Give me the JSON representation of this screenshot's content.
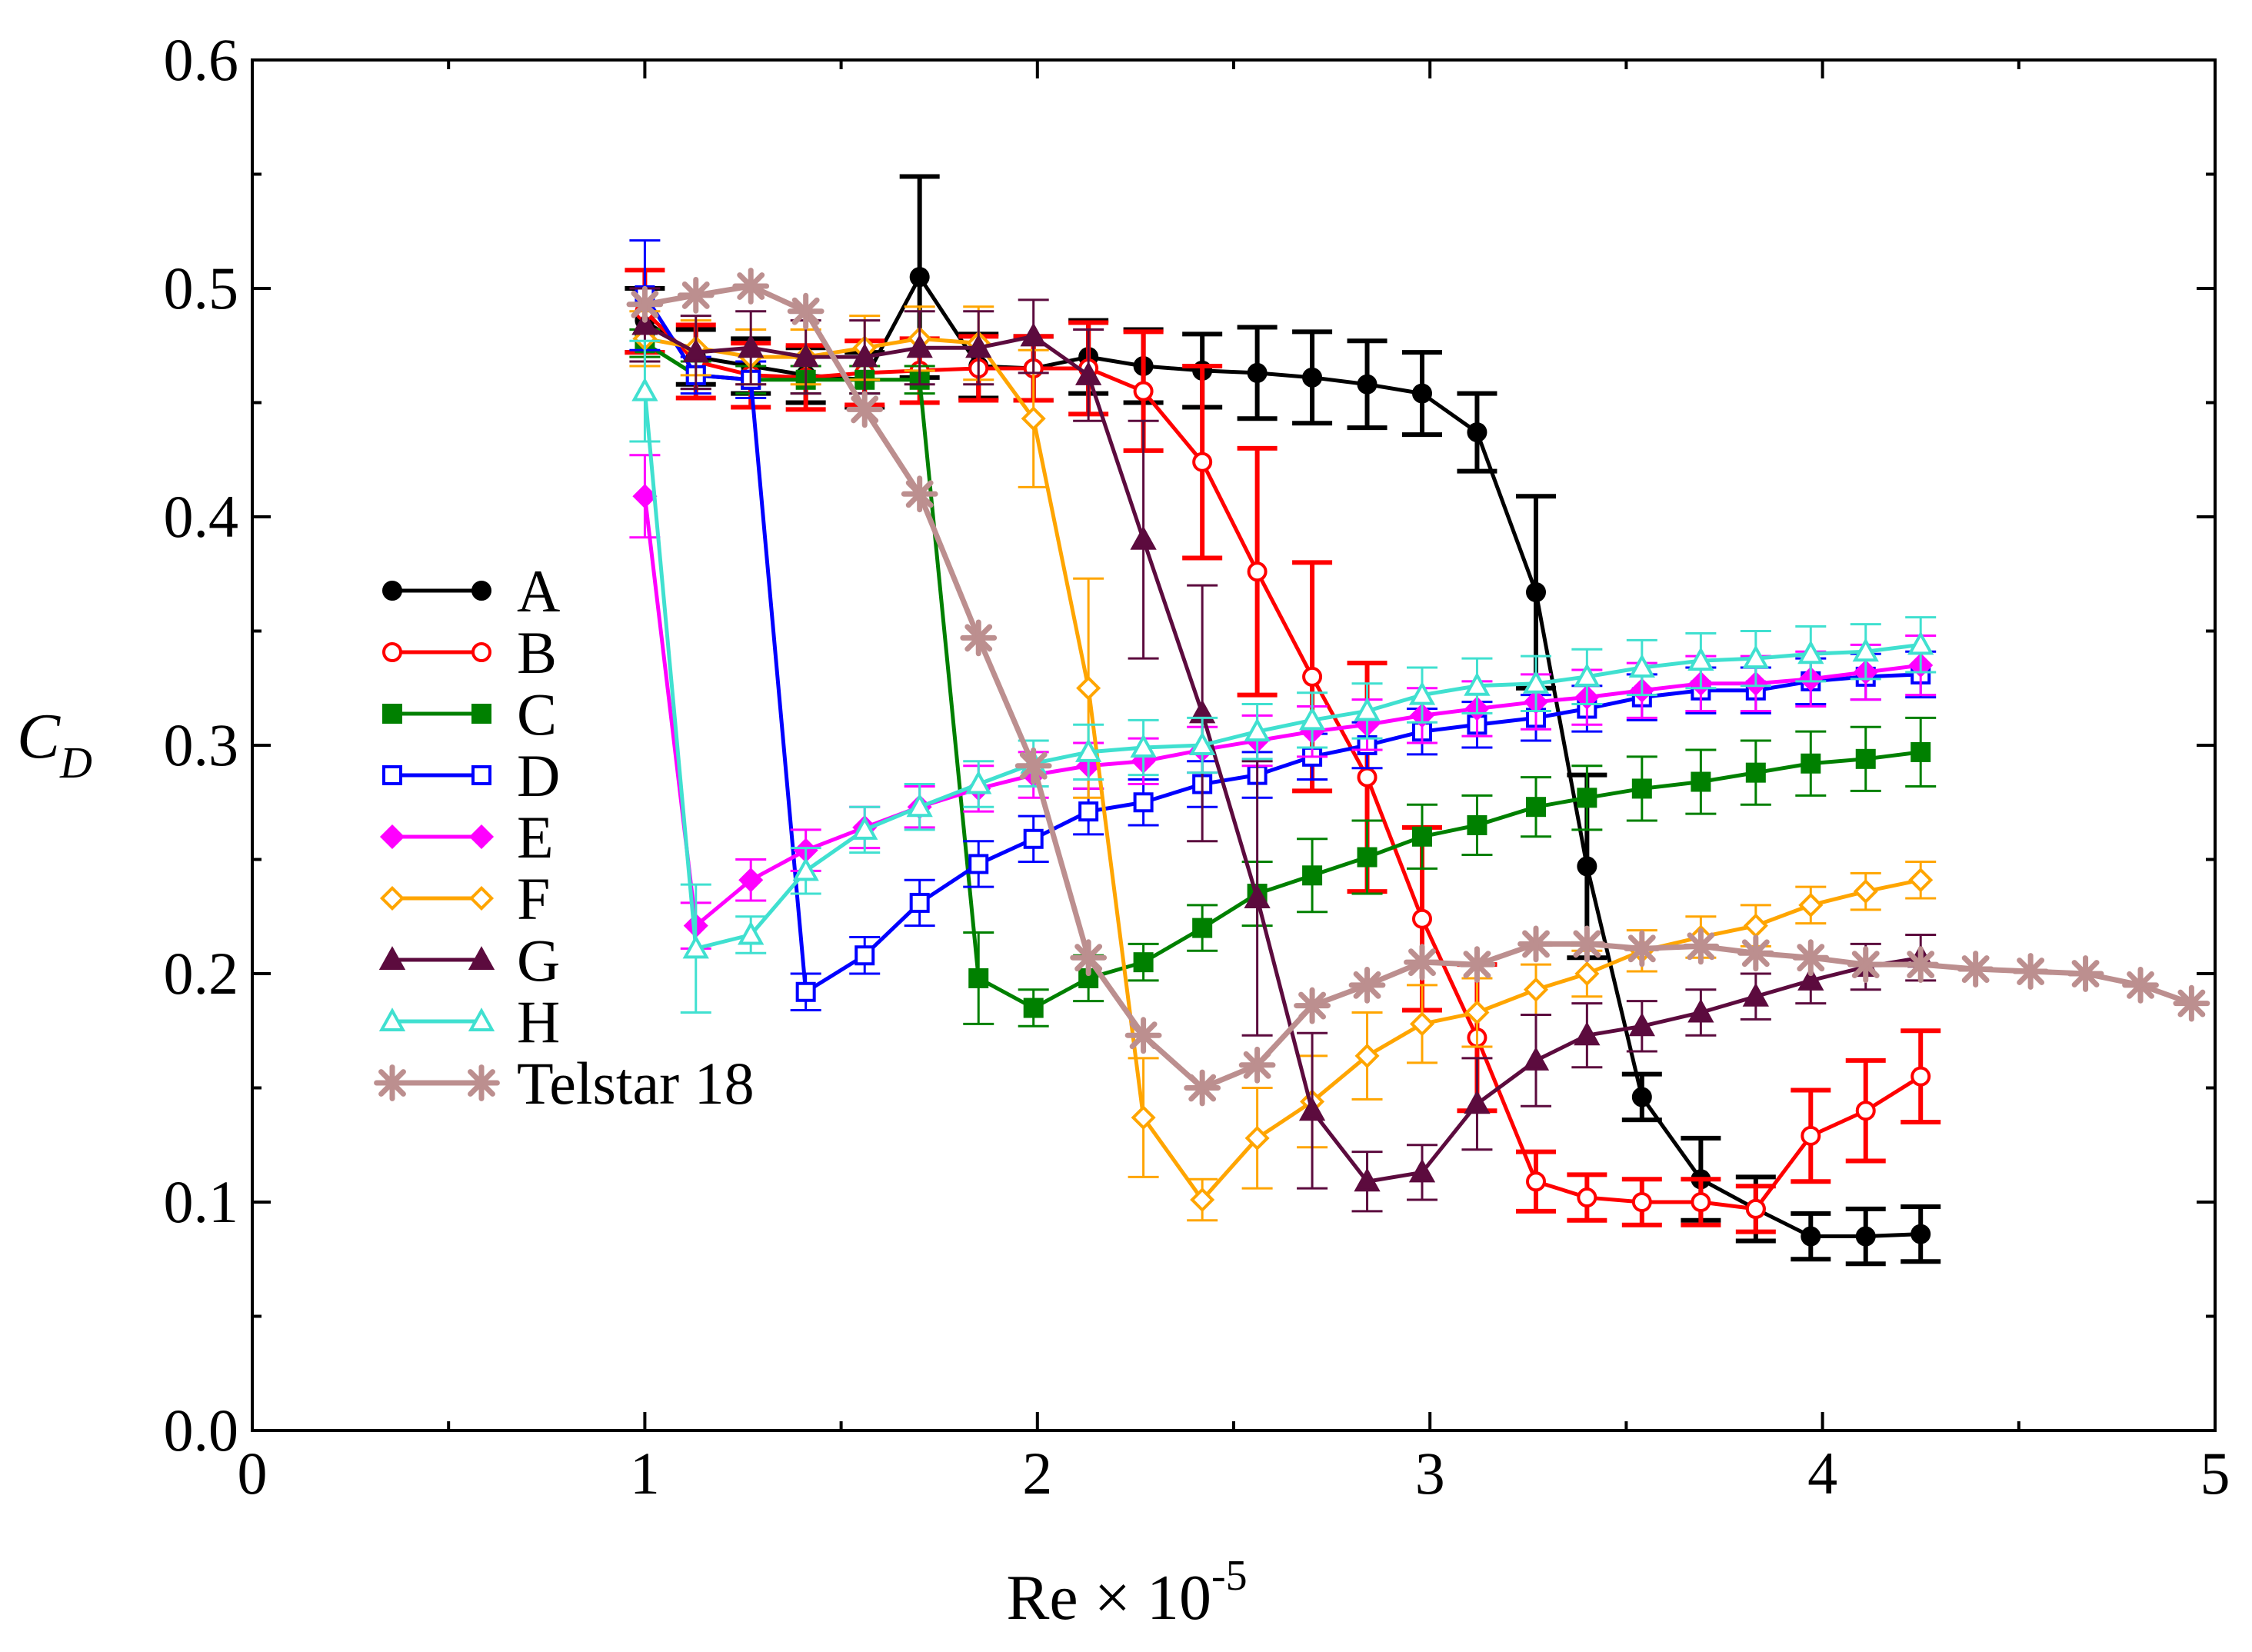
{
  "chart_data": {
    "type": "line",
    "title": "",
    "xlabel": "Re × 10",
    "xlabel_exponent": "-5",
    "ylabel_main": "C",
    "ylabel_sub": "D",
    "xlim": [
      0,
      5
    ],
    "ylim": [
      0,
      0.6
    ],
    "x_ticks": [
      0,
      1,
      2,
      3,
      4,
      5
    ],
    "x_tick_labels": [
      "0",
      "1",
      "2",
      "3",
      "4",
      "5"
    ],
    "y_ticks": [
      0.0,
      0.1,
      0.2,
      0.3,
      0.4,
      0.5,
      0.6
    ],
    "y_tick_labels": [
      "0.0",
      "0.1",
      "0.2",
      "0.3",
      "0.4",
      "0.5",
      "0.6"
    ],
    "grid": false,
    "legend_position": "left",
    "series": [
      {
        "name": "A",
        "color": "#000000",
        "marker": "circle",
        "filled": true,
        "errcap_bold": true,
        "x": [
          1.0,
          1.13,
          1.27,
          1.41,
          1.56,
          1.7,
          1.85,
          1.99,
          2.13,
          2.27,
          2.42,
          2.56,
          2.7,
          2.84,
          2.98,
          3.12,
          3.27,
          3.4,
          3.54,
          3.69,
          3.83,
          3.97,
          4.11,
          4.25
        ],
        "y": [
          0.486,
          0.47,
          0.466,
          0.462,
          0.46,
          0.505,
          0.466,
          0.465,
          0.47,
          0.466,
          0.464,
          0.463,
          0.461,
          0.458,
          0.454,
          0.437,
          0.367,
          0.247,
          0.146,
          0.11,
          0.097,
          0.085,
          0.085,
          0.086
        ],
        "err": [
          0.014,
          0.012,
          0.012,
          0.012,
          0.012,
          0.044,
          0.014,
          0.014,
          0.016,
          0.016,
          0.016,
          0.02,
          0.02,
          0.019,
          0.018,
          0.017,
          0.042,
          0.04,
          0.01,
          0.018,
          0.014,
          0.01,
          0.012,
          0.012
        ]
      },
      {
        "name": "B",
        "color": "#ff0000",
        "marker": "circle",
        "filled": false,
        "errcap_bold": true,
        "x": [
          1.0,
          1.13,
          1.27,
          1.41,
          1.56,
          1.7,
          1.85,
          1.99,
          2.13,
          2.27,
          2.42,
          2.56,
          2.7,
          2.84,
          2.98,
          3.12,
          3.27,
          3.4,
          3.54,
          3.69,
          3.83,
          3.97,
          4.11,
          4.25
        ],
        "y": [
          0.49,
          0.468,
          0.462,
          0.461,
          0.463,
          0.464,
          0.465,
          0.465,
          0.465,
          0.455,
          0.424,
          0.376,
          0.33,
          0.286,
          0.224,
          0.172,
          0.109,
          0.102,
          0.1,
          0.1,
          0.097,
          0.129,
          0.14,
          0.155
        ],
        "err": [
          0.018,
          0.016,
          0.014,
          0.014,
          0.014,
          0.014,
          0.014,
          0.014,
          0.02,
          0.026,
          0.042,
          0.054,
          0.05,
          0.05,
          0.04,
          0.032,
          0.013,
          0.01,
          0.01,
          0.01,
          0.01,
          0.02,
          0.022,
          0.02
        ]
      },
      {
        "name": "C",
        "color": "#008000",
        "marker": "square",
        "filled": true,
        "errcap_bold": false,
        "x": [
          1.0,
          1.13,
          1.27,
          1.41,
          1.56,
          1.7,
          1.85,
          1.99,
          2.13,
          2.27,
          2.42,
          2.56,
          2.7,
          2.84,
          2.98,
          3.12,
          3.27,
          3.4,
          3.54,
          3.69,
          3.83,
          3.97,
          4.11,
          4.25
        ],
        "y": [
          0.476,
          0.462,
          0.46,
          0.46,
          0.46,
          0.46,
          0.198,
          0.185,
          0.198,
          0.205,
          0.22,
          0.235,
          0.243,
          0.251,
          0.26,
          0.265,
          0.273,
          0.277,
          0.281,
          0.284,
          0.288,
          0.292,
          0.294,
          0.297
        ],
        "err": [
          0.006,
          0.006,
          0.006,
          0.006,
          0.006,
          0.006,
          0.02,
          0.008,
          0.01,
          0.008,
          0.01,
          0.014,
          0.016,
          0.016,
          0.014,
          0.013,
          0.013,
          0.014,
          0.014,
          0.014,
          0.014,
          0.014,
          0.014,
          0.015
        ]
      },
      {
        "name": "D",
        "color": "#0000ff",
        "marker": "square",
        "filled": false,
        "errcap_bold": false,
        "x": [
          1.0,
          1.13,
          1.27,
          1.41,
          1.56,
          1.7,
          1.85,
          1.99,
          2.13,
          2.27,
          2.42,
          2.56,
          2.7,
          2.84,
          2.98,
          3.12,
          3.27,
          3.4,
          3.54,
          3.69,
          3.83,
          3.97,
          4.11,
          4.25
        ],
        "y": [
          0.497,
          0.462,
          0.46,
          0.192,
          0.208,
          0.231,
          0.248,
          0.259,
          0.271,
          0.275,
          0.283,
          0.287,
          0.295,
          0.3,
          0.306,
          0.309,
          0.312,
          0.316,
          0.321,
          0.324,
          0.324,
          0.328,
          0.33,
          0.331
        ],
        "err": [
          0.024,
          0.008,
          0.008,
          0.008,
          0.008,
          0.01,
          0.01,
          0.01,
          0.01,
          0.01,
          0.01,
          0.01,
          0.01,
          0.01,
          0.01,
          0.01,
          0.01,
          0.01,
          0.01,
          0.01,
          0.01,
          0.01,
          0.01,
          0.01
        ]
      },
      {
        "name": "E",
        "color": "#ff00ff",
        "marker": "diamond",
        "filled": true,
        "errcap_bold": false,
        "x": [
          1.0,
          1.13,
          1.27,
          1.41,
          1.56,
          1.7,
          1.85,
          1.99,
          2.13,
          2.27,
          2.42,
          2.56,
          2.7,
          2.84,
          2.98,
          3.12,
          3.27,
          3.4,
          3.54,
          3.69,
          3.83,
          3.97,
          4.11,
          4.25
        ],
        "y": [
          0.409,
          0.221,
          0.241,
          0.254,
          0.264,
          0.273,
          0.281,
          0.287,
          0.291,
          0.293,
          0.298,
          0.302,
          0.306,
          0.309,
          0.313,
          0.316,
          0.319,
          0.321,
          0.324,
          0.327,
          0.327,
          0.329,
          0.332,
          0.335
        ],
        "err": [
          0.018,
          0.01,
          0.009,
          0.009,
          0.009,
          0.009,
          0.01,
          0.01,
          0.01,
          0.01,
          0.01,
          0.011,
          0.011,
          0.011,
          0.012,
          0.012,
          0.012,
          0.012,
          0.012,
          0.012,
          0.012,
          0.012,
          0.012,
          0.013
        ]
      },
      {
        "name": "F",
        "color": "#ffa500",
        "marker": "diamond",
        "filled": false,
        "errcap_bold": false,
        "x": [
          1.0,
          1.13,
          1.27,
          1.41,
          1.56,
          1.7,
          1.85,
          1.99,
          2.13,
          2.27,
          2.42,
          2.56,
          2.7,
          2.84,
          2.98,
          3.12,
          3.27,
          3.4,
          3.54,
          3.69,
          3.83,
          3.97,
          4.11,
          4.25
        ],
        "y": [
          0.478,
          0.474,
          0.47,
          0.47,
          0.474,
          0.478,
          0.476,
          0.443,
          0.325,
          0.137,
          0.101,
          0.128,
          0.144,
          0.164,
          0.178,
          0.183,
          0.193,
          0.2,
          0.21,
          0.216,
          0.221,
          0.23,
          0.236,
          0.241
        ],
        "err": [
          0.012,
          0.012,
          0.012,
          0.012,
          0.014,
          0.014,
          0.016,
          0.03,
          0.048,
          0.026,
          0.009,
          0.022,
          0.02,
          0.019,
          0.017,
          0.015,
          0.011,
          0.01,
          0.009,
          0.009,
          0.009,
          0.008,
          0.008,
          0.008
        ]
      },
      {
        "name": "G",
        "color": "#5c0b3e",
        "marker": "triangle",
        "filled": true,
        "errcap_bold": false,
        "x": [
          1.0,
          1.13,
          1.27,
          1.41,
          1.56,
          1.7,
          1.85,
          1.99,
          2.13,
          2.27,
          2.42,
          2.56,
          2.7,
          2.84,
          2.98,
          3.12,
          3.27,
          3.4,
          3.54,
          3.69,
          3.83,
          3.97,
          4.11,
          4.25
        ],
        "y": [
          0.484,
          0.472,
          0.474,
          0.47,
          0.47,
          0.474,
          0.474,
          0.479,
          0.462,
          0.39,
          0.314,
          0.233,
          0.14,
          0.109,
          0.113,
          0.143,
          0.162,
          0.173,
          0.177,
          0.183,
          0.19,
          0.197,
          0.203,
          0.207
        ],
        "err": [
          0.016,
          0.016,
          0.016,
          0.016,
          0.016,
          0.016,
          0.016,
          0.016,
          0.02,
          0.052,
          0.056,
          0.06,
          0.034,
          0.013,
          0.012,
          0.02,
          0.02,
          0.014,
          0.011,
          0.01,
          0.01,
          0.01,
          0.01,
          0.01
        ]
      },
      {
        "name": "H",
        "color": "#40e0d0",
        "marker": "triangle",
        "filled": false,
        "errcap_bold": false,
        "x": [
          1.0,
          1.13,
          1.27,
          1.41,
          1.56,
          1.7,
          1.85,
          1.99,
          2.13,
          2.27,
          2.42,
          2.56,
          2.7,
          2.84,
          2.98,
          3.12,
          3.27,
          3.4,
          3.54,
          3.69,
          3.83,
          3.97,
          4.11,
          4.25
        ],
        "y": [
          0.455,
          0.211,
          0.217,
          0.245,
          0.263,
          0.273,
          0.283,
          0.292,
          0.297,
          0.299,
          0.3,
          0.306,
          0.311,
          0.315,
          0.322,
          0.326,
          0.327,
          0.33,
          0.334,
          0.337,
          0.338,
          0.34,
          0.341,
          0.344
        ],
        "err": [
          0.022,
          0.028,
          0.008,
          0.01,
          0.01,
          0.01,
          0.01,
          0.01,
          0.012,
          0.012,
          0.012,
          0.012,
          0.012,
          0.012,
          0.012,
          0.012,
          0.012,
          0.012,
          0.012,
          0.012,
          0.012,
          0.012,
          0.012,
          0.012
        ]
      },
      {
        "name": "Telstar 18",
        "color": "#bc8f8f",
        "marker": "asterisk",
        "filled": false,
        "errcap_bold": false,
        "x": [
          1.0,
          1.13,
          1.27,
          1.41,
          1.56,
          1.7,
          1.85,
          1.99,
          2.13,
          2.27,
          2.42,
          2.56,
          2.7,
          2.84,
          2.98,
          3.12,
          3.27,
          3.4,
          3.54,
          3.69,
          3.83,
          3.97,
          4.11,
          4.25,
          4.39,
          4.53,
          4.67,
          4.81,
          4.94
        ],
        "y": [
          0.493,
          0.497,
          0.501,
          0.49,
          0.447,
          0.41,
          0.347,
          0.291,
          0.207,
          0.173,
          0.15,
          0.16,
          0.186,
          0.195,
          0.205,
          0.204,
          0.213,
          0.213,
          0.211,
          0.212,
          0.209,
          0.207,
          0.204,
          0.204,
          0.202,
          0.201,
          0.2,
          0.195,
          0.187
        ],
        "err": []
      }
    ]
  }
}
